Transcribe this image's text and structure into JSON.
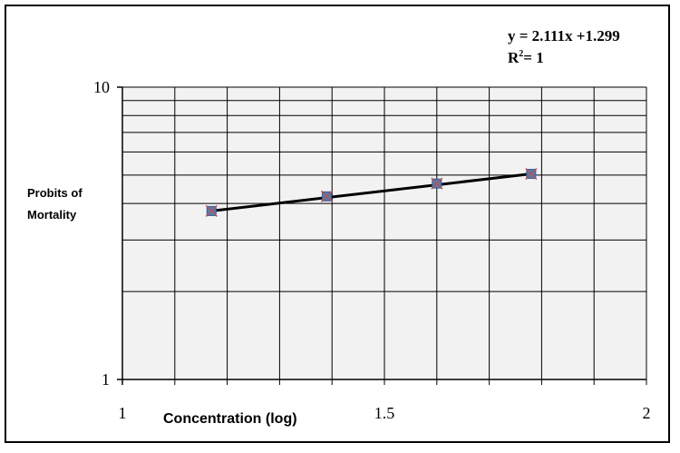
{
  "chart_data": {
    "type": "scatter",
    "title": "",
    "xlabel": "Concentration (log)",
    "ylabel_lines": [
      "Probits of",
      "Mortality"
    ],
    "x_range": [
      1,
      2
    ],
    "y_range": [
      1,
      10
    ],
    "y_scale": "log",
    "grid": true,
    "x_ticks": [
      "1",
      "1.5",
      "2"
    ],
    "y_ticks": [
      "1",
      "10"
    ],
    "equation": "y = 2.111x +1.299",
    "r_squared_label": "R",
    "r_squared_sup": "2",
    "r_squared_value": "= 1",
    "series": [
      {
        "points": [
          {
            "x": 1.17,
            "y": 3.77
          },
          {
            "x": 1.39,
            "y": 4.23
          },
          {
            "x": 1.6,
            "y": 4.68
          },
          {
            "x": 1.78,
            "y": 5.05
          }
        ]
      }
    ],
    "trendline": {
      "x": [
        1.17,
        1.78
      ],
      "y": [
        3.77,
        5.05
      ]
    },
    "colors": {
      "marker": "#4a7ebb",
      "marker_cross": "#c0504d",
      "line": "#000000",
      "grid": "#000000",
      "plot_bg": "#f2f2f2"
    }
  }
}
